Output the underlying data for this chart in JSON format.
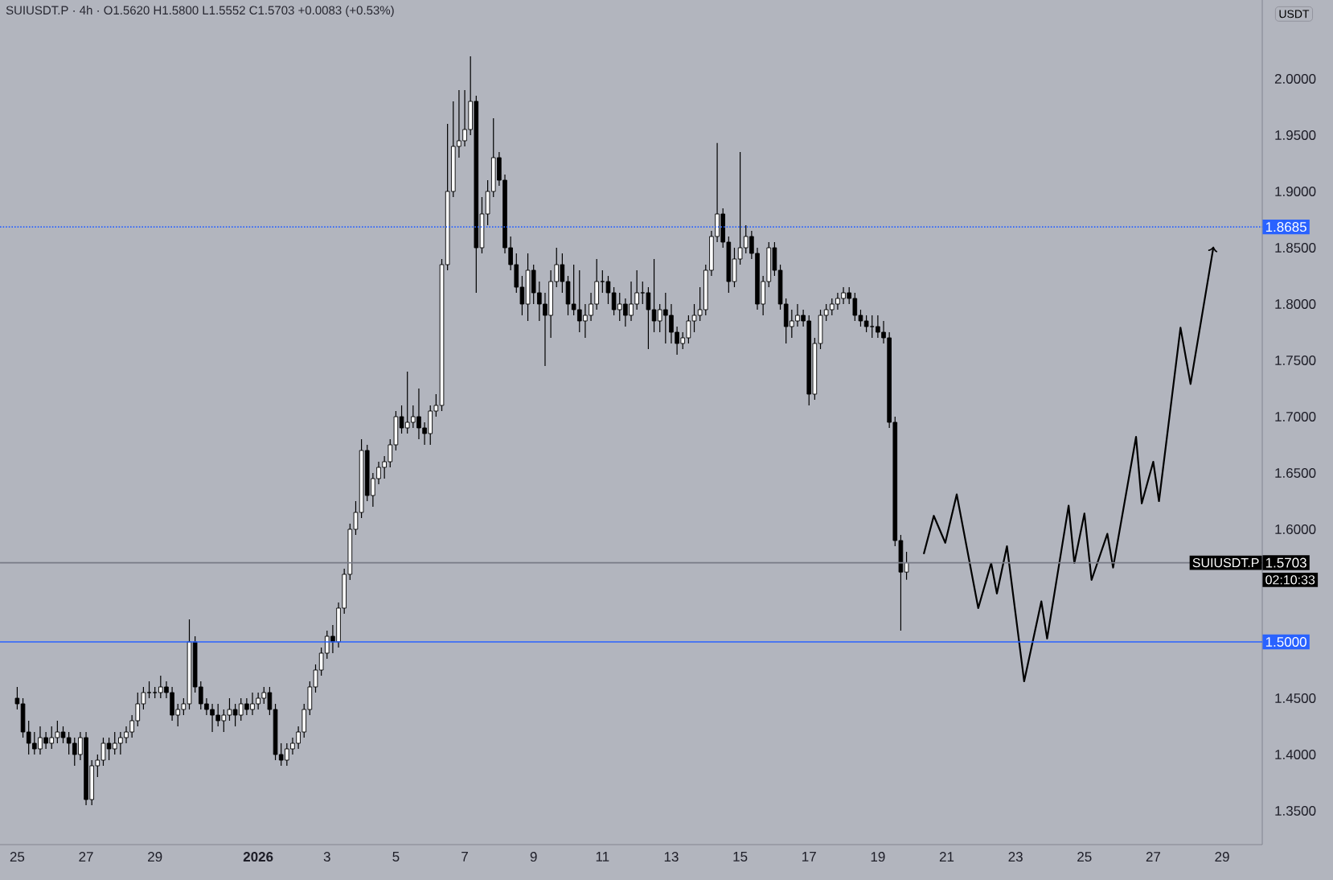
{
  "chart_data": {
    "type": "candlestick",
    "title": "SUIUSDT.P · 4h · O1.5620 H1.5800 L1.5552 C1.5703 +0.0083 (+0.53%)",
    "ylabel": "USDT",
    "xlim": [
      "2025-12-24T12:00",
      "2026-01-30T04:00"
    ],
    "ylim": [
      1.32,
      2.07
    ],
    "xticks": [
      {
        "value": "2025-12-25",
        "label": "25"
      },
      {
        "value": "2025-12-27",
        "label": "27"
      },
      {
        "value": "2025-12-29",
        "label": "29"
      },
      {
        "value": "2026-01-01",
        "label": "**2026**"
      },
      {
        "value": "2026-01-03",
        "label": "3"
      },
      {
        "value": "2026-01-05",
        "label": "5"
      },
      {
        "value": "2026-01-07",
        "label": "7"
      },
      {
        "value": "2026-01-09",
        "label": "9"
      },
      {
        "value": "2026-01-11",
        "label": "11"
      },
      {
        "value": "2026-01-13",
        "label": "13"
      },
      {
        "value": "2026-01-15",
        "label": "15"
      },
      {
        "value": "2026-01-17",
        "label": "17"
      },
      {
        "value": "2026-01-19",
        "label": "19"
      },
      {
        "value": "2026-01-21",
        "label": "21"
      },
      {
        "value": "2026-01-23",
        "label": "23"
      },
      {
        "value": "2026-01-25",
        "label": "25"
      },
      {
        "value": "2026-01-27",
        "label": "27"
      },
      {
        "value": "2026-01-29",
        "label": "29"
      }
    ],
    "yticks": [
      {
        "value": 1.35,
        "label": "1.3500"
      },
      {
        "value": 1.4,
        "label": "1.4000"
      },
      {
        "value": 1.45,
        "label": "1.4500"
      },
      {
        "value": 1.6,
        "label": "1.6000"
      },
      {
        "value": 1.65,
        "label": "1.6500"
      },
      {
        "value": 1.7,
        "label": "1.7000"
      },
      {
        "value": 1.75,
        "label": "1.7500"
      },
      {
        "value": 1.8,
        "label": "1.8000"
      },
      {
        "value": 1.85,
        "label": "1.8500"
      },
      {
        "value": 1.9,
        "label": "1.9000"
      },
      {
        "value": 1.95,
        "label": "1.9500"
      },
      {
        "value": 2.0,
        "label": "2.0000"
      }
    ],
    "x": [
      "2025-12-25T00:00",
      "2025-12-25T04:00",
      "2025-12-25T08:00",
      "2025-12-25T12:00",
      "2025-12-25T16:00",
      "2025-12-25T20:00",
      "2025-12-26T00:00",
      "2025-12-26T04:00",
      "2025-12-26T08:00",
      "2025-12-26T12:00",
      "2025-12-26T16:00",
      "2025-12-26T20:00",
      "2025-12-27T00:00",
      "2025-12-27T04:00",
      "2025-12-27T08:00",
      "2025-12-27T12:00",
      "2025-12-27T16:00",
      "2025-12-27T20:00",
      "2025-12-28T00:00",
      "2025-12-28T04:00",
      "2025-12-28T08:00",
      "2025-12-28T12:00",
      "2025-12-28T16:00",
      "2025-12-28T20:00",
      "2025-12-29T00:00",
      "2025-12-29T04:00",
      "2025-12-29T08:00",
      "2025-12-29T12:00",
      "2025-12-29T16:00",
      "2025-12-29T20:00",
      "2025-12-30T00:00",
      "2025-12-30T04:00",
      "2025-12-30T08:00",
      "2025-12-30T12:00",
      "2025-12-30T16:00",
      "2025-12-30T20:00",
      "2025-12-31T00:00",
      "2025-12-31T04:00",
      "2025-12-31T08:00",
      "2025-12-31T12:00",
      "2025-12-31T16:00",
      "2025-12-31T20:00",
      "2026-01-01T00:00",
      "2026-01-01T04:00",
      "2026-01-01T08:00",
      "2026-01-01T12:00",
      "2026-01-01T16:00",
      "2026-01-01T20:00",
      "2026-01-02T00:00",
      "2026-01-02T04:00",
      "2026-01-02T08:00",
      "2026-01-02T12:00",
      "2026-01-02T16:00",
      "2026-01-02T20:00",
      "2026-01-03T00:00",
      "2026-01-03T04:00",
      "2026-01-03T08:00",
      "2026-01-03T12:00",
      "2026-01-03T16:00",
      "2026-01-03T20:00",
      "2026-01-04T00:00",
      "2026-01-04T04:00",
      "2026-01-04T08:00",
      "2026-01-04T12:00",
      "2026-01-04T16:00",
      "2026-01-04T20:00",
      "2026-01-05T00:00",
      "2026-01-05T04:00",
      "2026-01-05T08:00",
      "2026-01-05T12:00",
      "2026-01-05T16:00",
      "2026-01-05T20:00",
      "2026-01-06T00:00",
      "2026-01-06T04:00",
      "2026-01-06T08:00",
      "2026-01-06T12:00",
      "2026-01-06T16:00",
      "2026-01-06T20:00",
      "2026-01-07T00:00",
      "2026-01-07T04:00",
      "2026-01-07T08:00",
      "2026-01-07T12:00",
      "2026-01-07T16:00",
      "2026-01-07T20:00",
      "2026-01-08T00:00",
      "2026-01-08T04:00",
      "2026-01-08T08:00",
      "2026-01-08T12:00",
      "2026-01-08T16:00",
      "2026-01-08T20:00",
      "2026-01-09T00:00",
      "2026-01-09T04:00",
      "2026-01-09T08:00",
      "2026-01-09T12:00",
      "2026-01-09T16:00",
      "2026-01-09T20:00",
      "2026-01-10T00:00",
      "2026-01-10T04:00",
      "2026-01-10T08:00",
      "2026-01-10T12:00",
      "2026-01-10T16:00",
      "2026-01-10T20:00",
      "2026-01-11T00:00",
      "2026-01-11T04:00",
      "2026-01-11T08:00",
      "2026-01-11T12:00",
      "2026-01-11T16:00",
      "2026-01-11T20:00",
      "2026-01-12T00:00",
      "2026-01-12T04:00",
      "2026-01-12T08:00",
      "2026-01-12T12:00",
      "2026-01-12T16:00",
      "2026-01-12T20:00",
      "2026-01-13T00:00",
      "2026-01-13T04:00",
      "2026-01-13T08:00",
      "2026-01-13T12:00",
      "2026-01-13T16:00",
      "2026-01-13T20:00",
      "2026-01-14T00:00",
      "2026-01-14T04:00",
      "2026-01-14T08:00",
      "2026-01-14T12:00",
      "2026-01-14T16:00",
      "2026-01-14T20:00",
      "2026-01-15T00:00",
      "2026-01-15T04:00",
      "2026-01-15T08:00",
      "2026-01-15T12:00",
      "2026-01-15T16:00",
      "2026-01-15T20:00",
      "2026-01-16T00:00",
      "2026-01-16T04:00",
      "2026-01-16T08:00",
      "2026-01-16T12:00",
      "2026-01-16T16:00",
      "2026-01-16T20:00",
      "2026-01-17T00:00",
      "2026-01-17T04:00",
      "2026-01-17T08:00",
      "2026-01-17T12:00",
      "2026-01-17T16:00",
      "2026-01-17T20:00",
      "2026-01-18T00:00",
      "2026-01-18T04:00",
      "2026-01-18T08:00",
      "2026-01-18T12:00",
      "2026-01-18T16:00",
      "2026-01-18T20:00",
      "2026-01-19T00:00",
      "2026-01-19T04:00",
      "2026-01-19T08:00",
      "2026-01-19T12:00",
      "2026-01-19T16:00",
      "2026-01-19T20:00"
    ],
    "ohlc": [
      [
        1.45,
        1.46,
        1.44,
        1.445
      ],
      [
        1.445,
        1.45,
        1.415,
        1.42
      ],
      [
        1.42,
        1.43,
        1.4,
        1.41
      ],
      [
        1.41,
        1.42,
        1.4,
        1.405
      ],
      [
        1.405,
        1.425,
        1.4,
        1.415
      ],
      [
        1.415,
        1.42,
        1.405,
        1.41
      ],
      [
        1.41,
        1.425,
        1.405,
        1.415
      ],
      [
        1.415,
        1.43,
        1.41,
        1.42
      ],
      [
        1.42,
        1.425,
        1.41,
        1.415
      ],
      [
        1.415,
        1.42,
        1.4,
        1.41
      ],
      [
        1.41,
        1.415,
        1.39,
        1.4
      ],
      [
        1.4,
        1.42,
        1.395,
        1.415
      ],
      [
        1.415,
        1.42,
        1.355,
        1.36
      ],
      [
        1.36,
        1.395,
        1.355,
        1.39
      ],
      [
        1.39,
        1.4,
        1.38,
        1.395
      ],
      [
        1.395,
        1.415,
        1.39,
        1.41
      ],
      [
        1.41,
        1.415,
        1.395,
        1.405
      ],
      [
        1.405,
        1.42,
        1.4,
        1.41
      ],
      [
        1.41,
        1.42,
        1.4,
        1.415
      ],
      [
        1.415,
        1.425,
        1.41,
        1.42
      ],
      [
        1.42,
        1.435,
        1.415,
        1.43
      ],
      [
        1.43,
        1.455,
        1.425,
        1.445
      ],
      [
        1.445,
        1.46,
        1.44,
        1.455
      ],
      [
        1.455,
        1.465,
        1.45,
        1.455
      ],
      [
        1.455,
        1.46,
        1.45,
        1.455
      ],
      [
        1.455,
        1.47,
        1.45,
        1.46
      ],
      [
        1.46,
        1.465,
        1.45,
        1.455
      ],
      [
        1.455,
        1.46,
        1.43,
        1.435
      ],
      [
        1.435,
        1.445,
        1.425,
        1.44
      ],
      [
        1.44,
        1.45,
        1.435,
        1.445
      ],
      [
        1.445,
        1.52,
        1.44,
        1.5
      ],
      [
        1.5,
        1.505,
        1.455,
        1.46
      ],
      [
        1.46,
        1.465,
        1.44,
        1.445
      ],
      [
        1.445,
        1.45,
        1.435,
        1.44
      ],
      [
        1.44,
        1.445,
        1.42,
        1.435
      ],
      [
        1.435,
        1.445,
        1.425,
        1.43
      ],
      [
        1.43,
        1.44,
        1.42,
        1.435
      ],
      [
        1.435,
        1.45,
        1.43,
        1.44
      ],
      [
        1.44,
        1.445,
        1.425,
        1.435
      ],
      [
        1.435,
        1.45,
        1.43,
        1.445
      ],
      [
        1.445,
        1.45,
        1.435,
        1.44
      ],
      [
        1.44,
        1.455,
        1.435,
        1.445
      ],
      [
        1.445,
        1.455,
        1.44,
        1.45
      ],
      [
        1.45,
        1.46,
        1.445,
        1.455
      ],
      [
        1.455,
        1.46,
        1.435,
        1.44
      ],
      [
        1.44,
        1.445,
        1.395,
        1.4
      ],
      [
        1.4,
        1.41,
        1.39,
        1.395
      ],
      [
        1.395,
        1.41,
        1.39,
        1.405
      ],
      [
        1.405,
        1.415,
        1.4,
        1.41
      ],
      [
        1.41,
        1.425,
        1.405,
        1.42
      ],
      [
        1.42,
        1.445,
        1.415,
        1.44
      ],
      [
        1.44,
        1.465,
        1.435,
        1.46
      ],
      [
        1.46,
        1.48,
        1.455,
        1.475
      ],
      [
        1.475,
        1.495,
        1.47,
        1.49
      ],
      [
        1.49,
        1.51,
        1.485,
        1.505
      ],
      [
        1.505,
        1.515,
        1.49,
        1.5
      ],
      [
        1.5,
        1.535,
        1.495,
        1.53
      ],
      [
        1.53,
        1.565,
        1.525,
        1.56
      ],
      [
        1.56,
        1.605,
        1.555,
        1.6
      ],
      [
        1.6,
        1.625,
        1.595,
        1.615
      ],
      [
        1.615,
        1.68,
        1.61,
        1.67
      ],
      [
        1.67,
        1.675,
        1.625,
        1.63
      ],
      [
        1.63,
        1.65,
        1.62,
        1.645
      ],
      [
        1.645,
        1.66,
        1.64,
        1.655
      ],
      [
        1.655,
        1.665,
        1.645,
        1.66
      ],
      [
        1.66,
        1.68,
        1.655,
        1.675
      ],
      [
        1.675,
        1.705,
        1.67,
        1.7
      ],
      [
        1.7,
        1.71,
        1.685,
        1.69
      ],
      [
        1.69,
        1.74,
        1.685,
        1.695
      ],
      [
        1.695,
        1.71,
        1.69,
        1.7
      ],
      [
        1.7,
        1.725,
        1.68,
        1.69
      ],
      [
        1.69,
        1.695,
        1.675,
        1.685
      ],
      [
        1.685,
        1.71,
        1.675,
        1.705
      ],
      [
        1.705,
        1.72,
        1.7,
        1.71
      ],
      [
        1.71,
        1.84,
        1.705,
        1.835
      ],
      [
        1.835,
        1.96,
        1.83,
        1.9
      ],
      [
        1.9,
        1.98,
        1.895,
        1.94
      ],
      [
        1.94,
        1.99,
        1.93,
        1.945
      ],
      [
        1.945,
        1.99,
        1.94,
        1.955
      ],
      [
        1.955,
        2.02,
        1.95,
        1.98
      ],
      [
        1.98,
        1.985,
        1.81,
        1.85
      ],
      [
        1.85,
        1.895,
        1.845,
        1.88
      ],
      [
        1.88,
        1.91,
        1.87,
        1.9
      ],
      [
        1.9,
        1.965,
        1.895,
        1.93
      ],
      [
        1.93,
        1.935,
        1.905,
        1.91
      ],
      [
        1.91,
        1.915,
        1.845,
        1.85
      ],
      [
        1.85,
        1.86,
        1.83,
        1.835
      ],
      [
        1.835,
        1.845,
        1.81,
        1.815
      ],
      [
        1.815,
        1.825,
        1.79,
        1.8
      ],
      [
        1.8,
        1.845,
        1.785,
        1.83
      ],
      [
        1.83,
        1.835,
        1.8,
        1.81
      ],
      [
        1.81,
        1.82,
        1.785,
        1.8
      ],
      [
        1.8,
        1.81,
        1.745,
        1.79
      ],
      [
        1.79,
        1.83,
        1.77,
        1.82
      ],
      [
        1.82,
        1.85,
        1.815,
        1.835
      ],
      [
        1.835,
        1.845,
        1.81,
        1.82
      ],
      [
        1.82,
        1.825,
        1.79,
        1.8
      ],
      [
        1.8,
        1.835,
        1.79,
        1.795
      ],
      [
        1.795,
        1.83,
        1.775,
        1.785
      ],
      [
        1.785,
        1.8,
        1.77,
        1.79
      ],
      [
        1.79,
        1.81,
        1.785,
        1.8
      ],
      [
        1.8,
        1.84,
        1.795,
        1.82
      ],
      [
        1.82,
        1.83,
        1.81,
        1.82
      ],
      [
        1.82,
        1.825,
        1.8,
        1.81
      ],
      [
        1.81,
        1.815,
        1.79,
        1.795
      ],
      [
        1.795,
        1.81,
        1.785,
        1.8
      ],
      [
        1.8,
        1.805,
        1.78,
        1.79
      ],
      [
        1.79,
        1.82,
        1.785,
        1.8
      ],
      [
        1.8,
        1.83,
        1.795,
        1.81
      ],
      [
        1.81,
        1.82,
        1.8,
        1.81
      ],
      [
        1.81,
        1.815,
        1.76,
        1.795
      ],
      [
        1.795,
        1.84,
        1.775,
        1.785
      ],
      [
        1.785,
        1.8,
        1.775,
        1.795
      ],
      [
        1.795,
        1.81,
        1.765,
        1.79
      ],
      [
        1.79,
        1.8,
        1.765,
        1.775
      ],
      [
        1.775,
        1.78,
        1.755,
        1.765
      ],
      [
        1.765,
        1.775,
        1.76,
        1.77
      ],
      [
        1.77,
        1.79,
        1.765,
        1.785
      ],
      [
        1.785,
        1.8,
        1.775,
        1.79
      ],
      [
        1.79,
        1.815,
        1.785,
        1.795
      ],
      [
        1.795,
        1.835,
        1.79,
        1.83
      ],
      [
        1.83,
        1.865,
        1.825,
        1.86
      ],
      [
        1.86,
        1.943,
        1.855,
        1.88
      ],
      [
        1.88,
        1.885,
        1.85,
        1.855
      ],
      [
        1.855,
        1.86,
        1.81,
        1.82
      ],
      [
        1.82,
        1.85,
        1.815,
        1.84
      ],
      [
        1.84,
        1.935,
        1.835,
        1.85
      ],
      [
        1.85,
        1.87,
        1.845,
        1.86
      ],
      [
        1.86,
        1.865,
        1.84,
        1.845
      ],
      [
        1.845,
        1.85,
        1.795,
        1.8
      ],
      [
        1.8,
        1.825,
        1.79,
        1.82
      ],
      [
        1.82,
        1.855,
        1.815,
        1.85
      ],
      [
        1.85,
        1.855,
        1.825,
        1.83
      ],
      [
        1.83,
        1.835,
        1.795,
        1.8
      ],
      [
        1.8,
        1.805,
        1.765,
        1.78
      ],
      [
        1.78,
        1.795,
        1.77,
        1.785
      ],
      [
        1.785,
        1.8,
        1.78,
        1.79
      ],
      [
        1.79,
        1.795,
        1.78,
        1.785
      ],
      [
        1.785,
        1.79,
        1.71,
        1.72
      ],
      [
        1.72,
        1.77,
        1.715,
        1.765
      ],
      [
        1.765,
        1.795,
        1.76,
        1.79
      ],
      [
        1.79,
        1.8,
        1.785,
        1.795
      ],
      [
        1.795,
        1.805,
        1.79,
        1.8
      ],
      [
        1.8,
        1.81,
        1.795,
        1.805
      ],
      [
        1.805,
        1.815,
        1.8,
        1.81
      ],
      [
        1.81,
        1.815,
        1.8,
        1.805
      ],
      [
        1.805,
        1.81,
        1.785,
        1.79
      ],
      [
        1.79,
        1.795,
        1.78,
        1.785
      ],
      [
        1.785,
        1.79,
        1.775,
        1.78
      ],
      [
        1.78,
        1.79,
        1.77,
        1.78
      ],
      [
        1.78,
        1.79,
        1.77,
        1.775
      ],
      [
        1.775,
        1.785,
        1.765,
        1.77
      ],
      [
        1.77,
        1.775,
        1.69,
        1.695
      ],
      [
        1.695,
        1.7,
        1.585,
        1.59
      ],
      [
        1.59,
        1.595,
        1.51,
        1.562
      ],
      [
        1.562,
        1.58,
        1.5552,
        1.5703
      ]
    ],
    "series": [
      {
        "type": "line",
        "color": "#000000",
        "x": [
          "2026-01-20T08:00",
          "2026-01-20T15:00",
          "2026-01-20T23:00",
          "2026-01-21T07:00",
          "2026-01-21T22:00",
          "2026-01-22T07:00",
          "2026-01-22T11:00",
          "2026-01-22T18:00",
          "2026-01-23T06:00",
          "2026-01-23T18:00",
          "2026-01-23T22:00",
          "2026-01-24T13:00",
          "2026-01-24T17:00",
          "2026-01-25T00:00",
          "2026-01-25T05:00",
          "2026-01-25T16:00",
          "2026-01-25T20:00",
          "2026-01-26T12:00",
          "2026-01-26T16:00",
          "2026-01-27T00:00",
          "2026-01-27T04:00",
          "2026-01-27T19:00",
          "2026-01-28T02:00",
          "2026-01-28T18:00"
        ],
        "values": [
          1.578,
          1.612,
          1.588,
          1.631,
          1.53,
          1.57,
          1.543,
          1.585,
          1.465,
          1.536,
          1.503,
          1.621,
          1.57,
          1.614,
          1.555,
          1.596,
          1.566,
          1.682,
          1.623,
          1.66,
          1.625,
          1.779,
          1.729,
          1.851
        ]
      }
    ],
    "ref_lines": [
      {
        "axis": "y",
        "value": 1.5,
        "label": "1.5000",
        "color": "#2962ff",
        "line_style": "solid"
      },
      {
        "axis": "y",
        "value": 1.8685,
        "label": "1.8685",
        "color": "#2962ff",
        "line_style": "dotted"
      },
      {
        "axis": "y",
        "value": 1.5703,
        "label": "1.5703",
        "color": "#787b86",
        "line_style": "solid"
      }
    ],
    "annotations": [
      "SUIUSDT.P",
      "02:10:33"
    ]
  }
}
